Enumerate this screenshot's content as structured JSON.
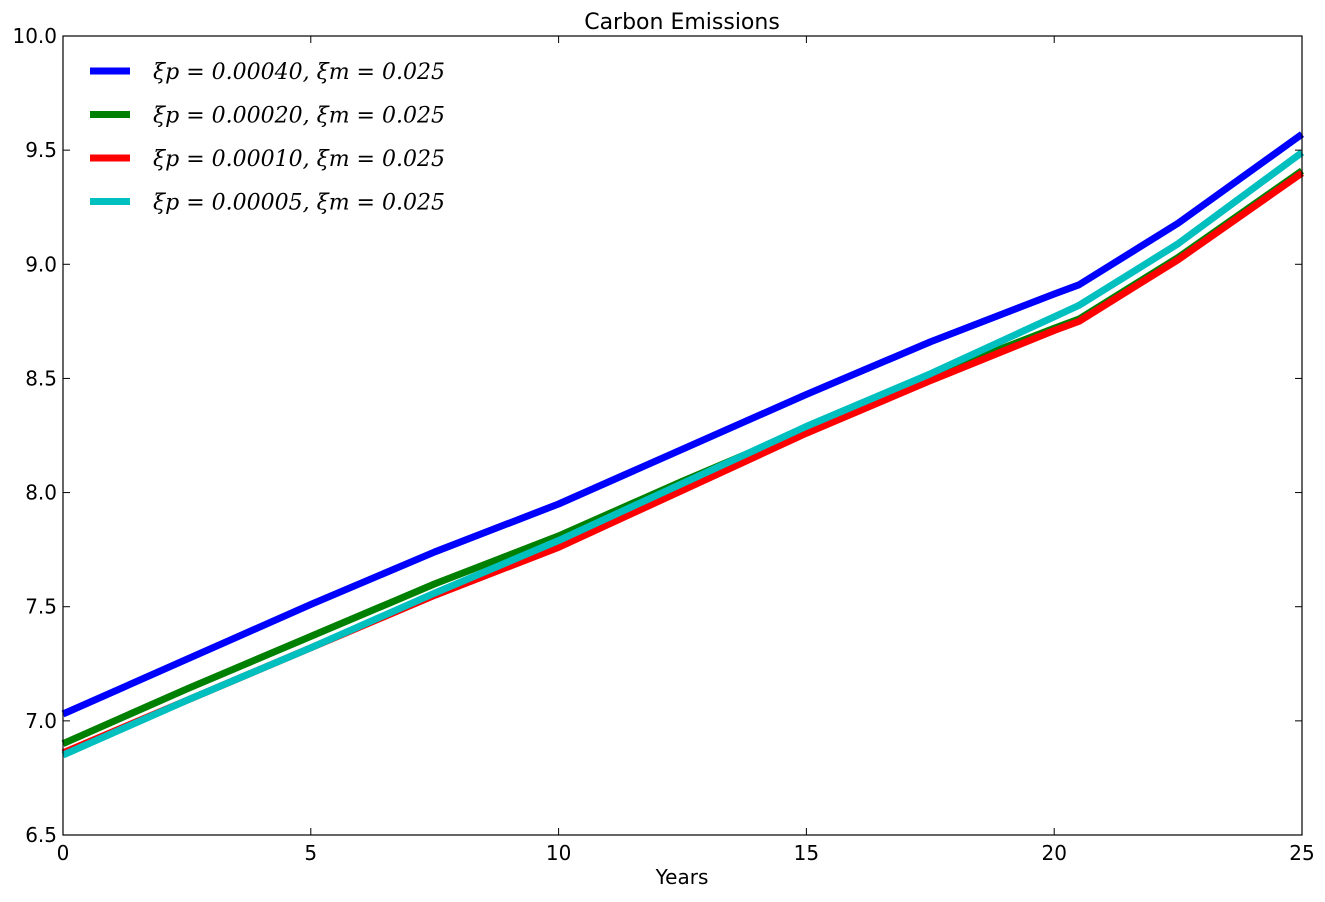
{
  "chart_data": {
    "type": "line",
    "title": "Carbon Emissions",
    "xlabel": "Years",
    "ylabel": "",
    "xlim": [
      0,
      25
    ],
    "ylim": [
      6.5,
      10.0
    ],
    "x_ticks": [
      "0",
      "5",
      "10",
      "15",
      "20",
      "25"
    ],
    "y_ticks": [
      "6.5",
      "7.0",
      "7.5",
      "8.0",
      "8.5",
      "9.0",
      "9.5",
      "10.0"
    ],
    "grid": false,
    "legend_position": "top-left",
    "series": [
      {
        "name": "ξp = 0.00040, ξm = 0.025",
        "color": "#0000ff",
        "x": [
          0,
          2.5,
          5,
          7.5,
          10,
          12.5,
          15,
          17.5,
          20,
          20.5,
          22.5,
          25
        ],
        "y": [
          7.03,
          7.27,
          7.51,
          7.74,
          7.95,
          8.19,
          8.43,
          8.66,
          8.87,
          8.91,
          9.18,
          9.57
        ]
      },
      {
        "name": "ξp = 0.00020, ξm = 0.025",
        "color": "#008000",
        "x": [
          0,
          2.5,
          5,
          7.5,
          10,
          12.5,
          15,
          17.5,
          20,
          20.5,
          22.5,
          25
        ],
        "y": [
          6.9,
          7.14,
          7.37,
          7.6,
          7.81,
          8.05,
          8.28,
          8.51,
          8.72,
          8.76,
          9.03,
          9.41
        ]
      },
      {
        "name": "ξp = 0.00010, ξm = 0.025",
        "color": "#ff0000",
        "x": [
          0,
          2.5,
          5,
          7.5,
          10,
          12.5,
          15,
          17.5,
          20,
          20.5,
          22.5,
          25
        ],
        "y": [
          6.86,
          7.09,
          7.32,
          7.55,
          7.76,
          8.01,
          8.26,
          8.49,
          8.71,
          8.75,
          9.02,
          9.4
        ]
      },
      {
        "name": "ξp = 0.00005, ξm = 0.025",
        "color": "#00bfbf",
        "x": [
          0,
          2.5,
          5,
          7.5,
          10,
          12.5,
          15,
          17.5,
          20,
          20.5,
          22.5,
          25
        ],
        "y": [
          6.85,
          7.09,
          7.32,
          7.56,
          7.79,
          8.04,
          8.29,
          8.52,
          8.77,
          8.82,
          9.09,
          9.49
        ]
      }
    ]
  }
}
